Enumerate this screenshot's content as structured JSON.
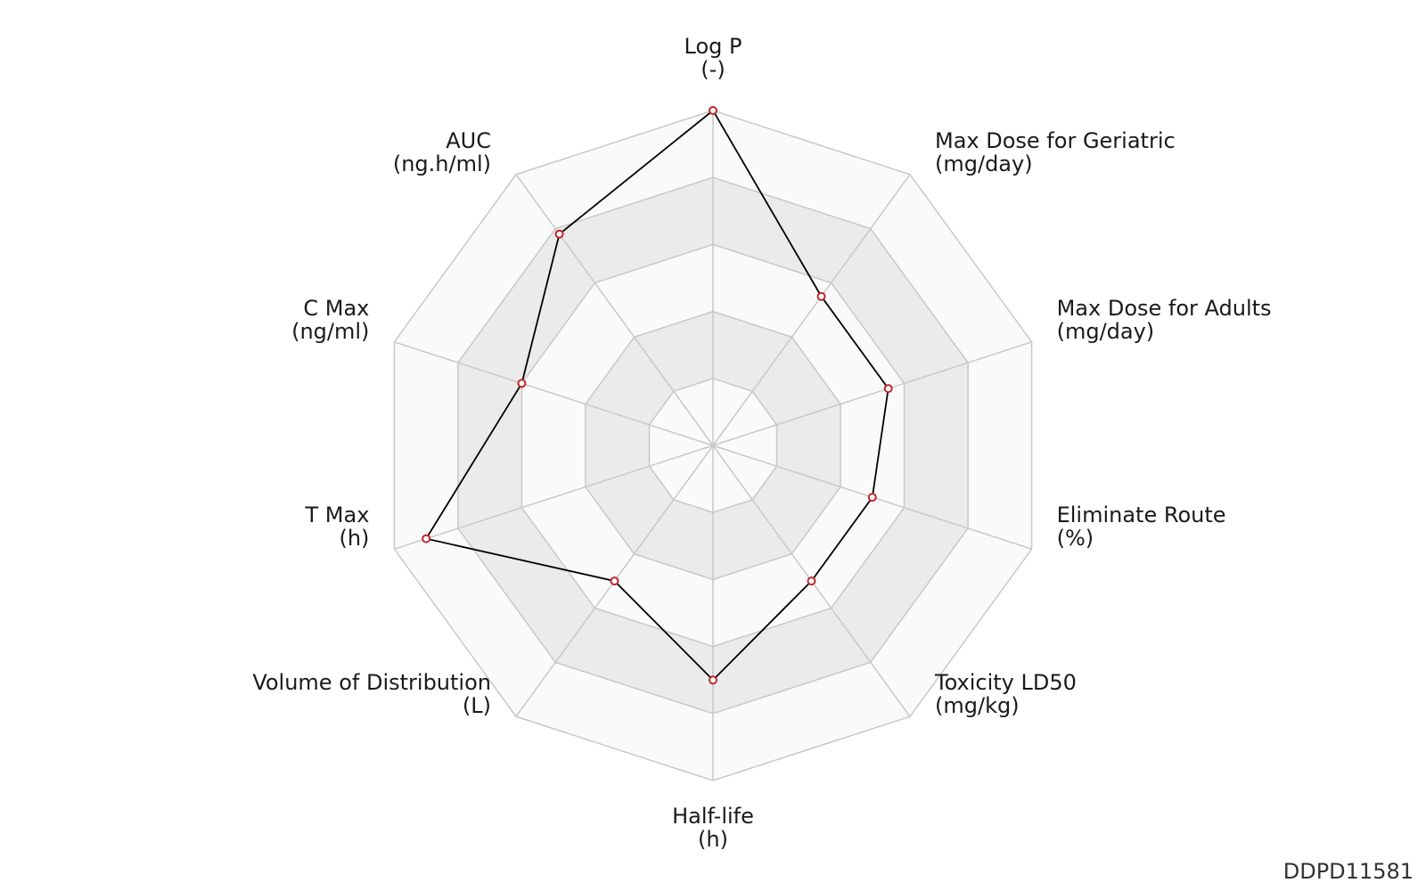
{
  "footer": {
    "id_label": "DDPD11581"
  },
  "chart_data": {
    "type": "radar",
    "title": "",
    "axes": [
      {
        "name": "Log P",
        "unit": "(-)"
      },
      {
        "name": "Max Dose for Geriatric",
        "unit": "(mg/day)"
      },
      {
        "name": "Max Dose for Adults",
        "unit": "(mg/day)"
      },
      {
        "name": "Eliminate Route",
        "unit": "(%)"
      },
      {
        "name": "Toxicity LD50",
        "unit": "(mg/kg)"
      },
      {
        "name": "Half-life",
        "unit": "(h)"
      },
      {
        "name": "Volume of Distribution",
        "unit": "(L)"
      },
      {
        "name": "T Max",
        "unit": "(h)"
      },
      {
        "name": "C Max",
        "unit": "(ng/ml)"
      },
      {
        "name": "AUC",
        "unit": "(ng.h/ml)"
      }
    ],
    "rings": 5,
    "range": [
      0,
      1
    ],
    "series": [
      {
        "values": [
          1.0,
          0.55,
          0.55,
          0.5,
          0.5,
          0.7,
          0.5,
          0.9,
          0.6,
          0.78
        ]
      }
    ],
    "colors": {
      "line": "#000000",
      "marker_fill": "#ffffff",
      "marker_stroke": "#c0262d",
      "grid": "#c8c8c8",
      "band_shaded": "#ebebeb",
      "band_light": "#fafafa"
    }
  }
}
